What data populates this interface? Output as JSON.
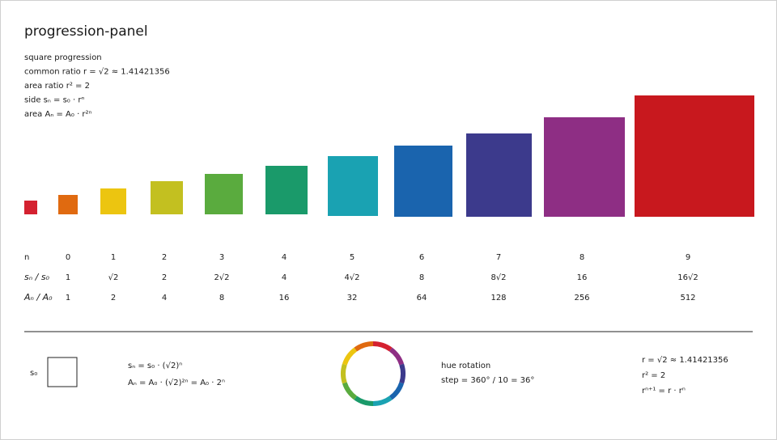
{
  "header": {
    "title": "progression-panel"
  },
  "info": [
    "square progression",
    "common ratio  r = √2 ≈ 1.41421356",
    "area ratio  r² = 2",
    "side  sₙ = s₀ · rⁿ",
    "area  Aₙ = A₀ · r²ⁿ"
  ],
  "table": {
    "rows": [
      {
        "label": "n",
        "cells": [
          "0",
          "1",
          "2",
          "3",
          "4",
          "5",
          "6",
          "7",
          "8",
          "9"
        ]
      },
      {
        "label": "sₙ / s₀",
        "cells": [
          "1",
          "√2",
          "2",
          "2√2",
          "4",
          "4√2",
          "8",
          "8√2",
          "16",
          "16√2"
        ]
      },
      {
        "label": "Aₙ / A₀",
        "cells": [
          "1",
          "2",
          "4",
          "8",
          "16",
          "32",
          "64",
          "128",
          "256",
          "512"
        ]
      }
    ]
  },
  "footer": {
    "base_label": "s₀",
    "formulas": [
      "sₙ = s₀ · (√2)ⁿ",
      "Aₙ = A₀ · (√2)²ⁿ = A₀ · 2ⁿ"
    ],
    "hue": [
      "hue rotation",
      "step = 360° / 10 = 36°"
    ],
    "identities": [
      "r = √2 ≈ 1.41421356",
      "r² = 2",
      "rⁿ⁺¹ = r · rⁿ"
    ]
  }
}
